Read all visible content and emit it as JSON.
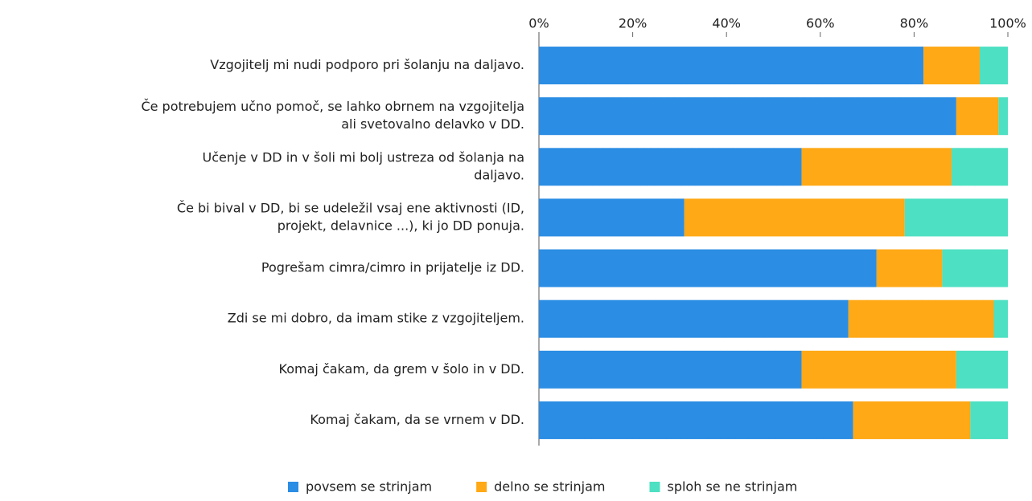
{
  "chart_data": {
    "type": "stacked-barh",
    "categories": [
      [
        "Vzgojitelj mi nudi podporo pri šolanju na daljavo."
      ],
      [
        "Če potrebujem učno pomoč, se lahko obrnem na vzgojitelja",
        "ali svetovalno delavko v DD."
      ],
      [
        "Učenje v DD in v šoli mi bolj ustreza od šolanja na",
        "daljavo."
      ],
      [
        "Če bi bival v DD, bi se udeležil vsaj ene aktivnosti (ID,",
        "projekt, delavnice ...), ki jo DD ponuja."
      ],
      [
        "Pogrešam cimra/cimro in prijatelje iz DD."
      ],
      [
        "Zdi se mi dobro, da imam stike z vzgojiteljem."
      ],
      [
        "Komaj čakam, da grem v šolo in v DD."
      ],
      [
        "Komaj čakam, da se vrnem v DD."
      ]
    ],
    "series": [
      {
        "name": "povsem se strinjam",
        "color": "#2b8de4",
        "values": [
          82,
          89,
          56,
          31,
          72,
          66,
          56,
          67
        ]
      },
      {
        "name": "delno se strinjam",
        "color": "#ffa916",
        "values": [
          12,
          9,
          32,
          47,
          14,
          31,
          33,
          25
        ]
      },
      {
        "name": "sploh se ne strinjam",
        "color": "#4de0c2",
        "values": [
          6,
          2,
          12,
          22,
          14,
          3,
          11,
          8
        ]
      }
    ],
    "xlim": [
      0,
      100
    ],
    "xticks": [
      {
        "value": 0,
        "label": "0%"
      },
      {
        "value": 20,
        "label": "20%"
      },
      {
        "value": 40,
        "label": "40%"
      },
      {
        "value": 60,
        "label": "60%"
      },
      {
        "value": 80,
        "label": "80%"
      },
      {
        "value": 100,
        "label": "100%"
      }
    ],
    "legend": "bottom"
  }
}
